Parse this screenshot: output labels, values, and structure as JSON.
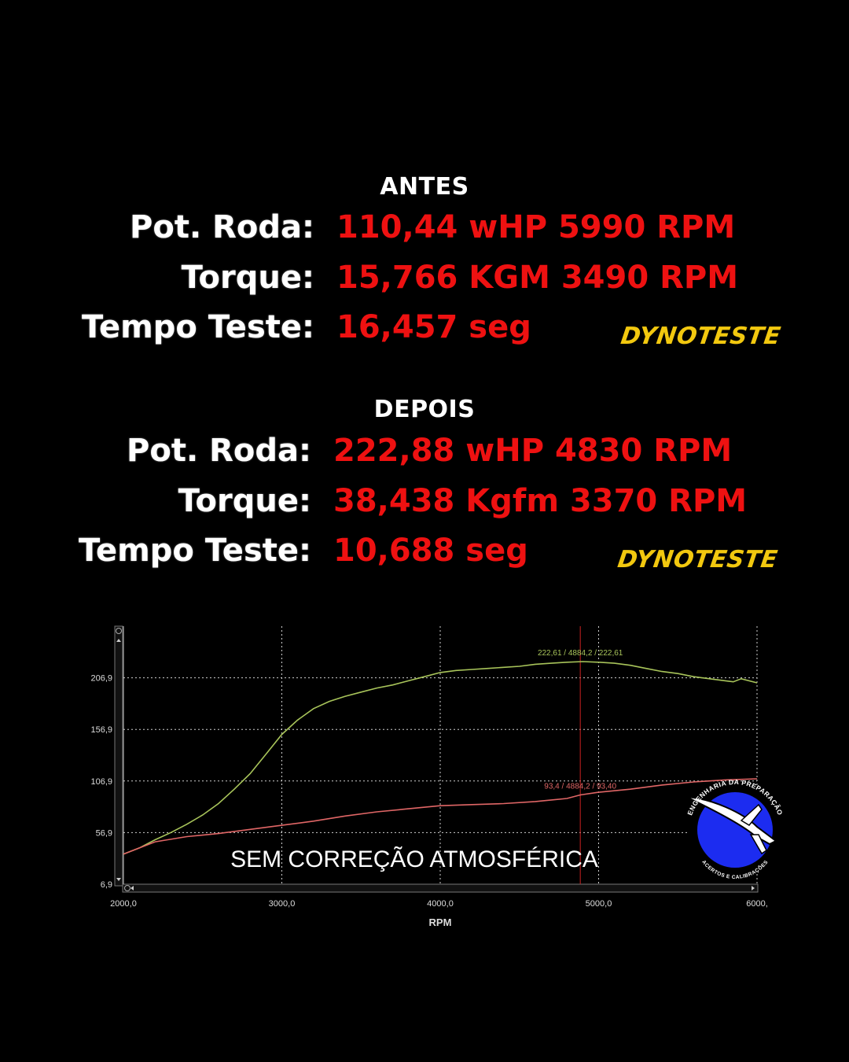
{
  "antes": {
    "title": "ANTES",
    "rows": [
      {
        "label": "Pot. Roda:",
        "value": "110,44 wHP 5990 RPM"
      },
      {
        "label": "Torque:",
        "value": "15,766 KGM  3490 RPM"
      },
      {
        "label": "Tempo Teste:",
        "value": "16,457 seg"
      }
    ],
    "brand": "DYNOTESTE"
  },
  "depois": {
    "title": "DEPOIS",
    "rows": [
      {
        "label": "Pot. Roda:",
        "value": "222,88 wHP 4830 RPM"
      },
      {
        "label": "Torque:",
        "value": "38,438 Kgfm 3370 RPM"
      },
      {
        "label": "Tempo Teste:",
        "value": "10,688 seg"
      }
    ],
    "brand": "DYNOTESTE"
  },
  "logo": {
    "top_text": "ENGENHARIA DA PREPARAÇÃO",
    "bottom_text": "ACERTOS E CALIBRAÇÕES"
  },
  "colors": {
    "power_line": "#a8c45a",
    "torque_line": "#e06666",
    "cursor": "#cc2222",
    "values": "#ee1111",
    "brand": "#f2c80f"
  },
  "chart_data": {
    "type": "line",
    "xlabel": "RPM",
    "x_ticks": [
      "2000,0",
      "3000,0",
      "4000,0",
      "5000,0",
      "6000,"
    ],
    "y_ticks": [
      "6,9",
      "56,9",
      "106,9",
      "156,9",
      "206,9"
    ],
    "xlim": [
      2000,
      6000
    ],
    "ylim": [
      6.9,
      256.9
    ],
    "grid": true,
    "overlay_text": "SEM CORREÇÃO ATMOSFÉRICA",
    "cursor_x": 4884.2,
    "series": [
      {
        "color": "#a8c45a",
        "label": "222,61 / 4884,2 / 222,61",
        "x": [
          2000,
          2100,
          2200,
          2300,
          2400,
          2500,
          2600,
          2700,
          2800,
          2900,
          3000,
          3100,
          3200,
          3300,
          3400,
          3500,
          3600,
          3700,
          3800,
          3900,
          4000,
          4100,
          4200,
          4300,
          4400,
          4500,
          4600,
          4700,
          4800,
          4900,
          5000,
          5100,
          5200,
          5300,
          5400,
          5500,
          5600,
          5700,
          5800,
          5850,
          5900,
          6000
        ],
        "y": [
          36,
          42,
          50,
          57,
          65,
          74,
          85,
          99,
          114,
          133,
          152,
          166,
          177,
          184,
          189,
          193,
          197,
          200,
          204,
          208,
          212,
          214,
          215,
          216,
          217,
          218,
          220,
          221,
          222,
          222.6,
          222,
          221,
          219,
          216,
          213,
          211,
          208,
          206,
          204,
          203,
          206,
          202
        ]
      },
      {
        "color": "#e06666",
        "label": "93,4 / 4884,2 / 93,40",
        "x": [
          2000,
          2200,
          2400,
          2600,
          2800,
          3000,
          3200,
          3400,
          3600,
          3800,
          4000,
          4200,
          4400,
          4600,
          4800,
          4884.2,
          5000,
          5200,
          5400,
          5600,
          5800,
          6000
        ],
        "y": [
          36,
          48,
          53,
          56,
          60,
          64,
          68,
          73,
          77,
          80,
          83,
          84,
          85,
          87,
          90,
          93.4,
          96,
          99,
          103,
          106,
          108,
          109
        ]
      }
    ]
  }
}
